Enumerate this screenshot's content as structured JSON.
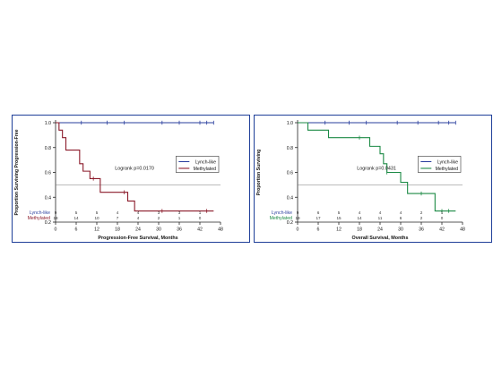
{
  "chart_data": [
    {
      "type": "line",
      "step": true,
      "ylabel": "Proportion Surviving Progression-Free",
      "xlabel": "Progression-Free Survival, Months",
      "xlim": [
        0,
        48
      ],
      "ylim": [
        0.2,
        1.0
      ],
      "xticks": [
        0,
        6,
        12,
        18,
        24,
        30,
        36,
        42,
        48
      ],
      "yticks": [
        0.2,
        0.4,
        0.6,
        0.8,
        1.0
      ],
      "ytick_labels": [
        "0.2",
        "0.4",
        "0.6",
        "0.8",
        "1.0"
      ],
      "reference_line": 0.5,
      "annotation": "Logrank p=0.0170",
      "legend_position": "right",
      "series": [
        {
          "name": "Lynch-like",
          "color": "#2a3f9e",
          "x": [
            0,
            46
          ],
          "y": [
            1.0,
            1.0
          ],
          "censor_x": [
            7.5,
            15,
            20,
            31,
            36,
            42,
            44,
            46
          ]
        },
        {
          "name": "Methylated",
          "color": "#8b1a2a",
          "x": [
            0,
            1,
            2,
            3,
            6,
            7,
            8,
            10,
            11,
            13,
            15,
            21,
            23,
            46
          ],
          "y": [
            1.0,
            0.94,
            0.88,
            0.78,
            0.78,
            0.67,
            0.61,
            0.55,
            0.55,
            0.44,
            0.44,
            0.37,
            0.29,
            0.29
          ],
          "censor_x": [
            11,
            20,
            31,
            44
          ]
        }
      ],
      "risk_table": {
        "rows": [
          {
            "label": "Lynch-like",
            "values": [
              "9",
              "5",
              "5",
              "4",
              "4",
              "3",
              "3",
              "1"
            ]
          },
          {
            "label": "Methylated",
            "values": [
              "18",
              "14",
              "10",
              "7",
              "4",
              "2",
              "1",
              "0"
            ]
          }
        ]
      }
    },
    {
      "type": "line",
      "step": true,
      "ylabel": "Proportion Surviving",
      "xlabel": "Overall Survival, Months",
      "xlim": [
        0,
        48
      ],
      "ylim": [
        0.2,
        1.0
      ],
      "xticks": [
        0,
        6,
        12,
        18,
        24,
        30,
        36,
        42,
        48
      ],
      "yticks": [
        0.2,
        0.4,
        0.6,
        0.8,
        1.0
      ],
      "ytick_labels": [
        "0.2",
        "0.4",
        "0.6",
        "0.8",
        "1.0"
      ],
      "reference_line": 0.5,
      "annotation": "Logrank p=0.0431",
      "legend_position": "right",
      "series": [
        {
          "name": "Lynch-like",
          "color": "#2a3f9e",
          "x": [
            0,
            46
          ],
          "y": [
            1.0,
            1.0
          ],
          "censor_x": [
            8,
            15,
            20,
            29,
            35,
            41,
            44,
            46
          ]
        },
        {
          "name": "Methylated",
          "color": "#1c8a45",
          "x": [
            0,
            3,
            9,
            21,
            24,
            25,
            26,
            30,
            32,
            40,
            46
          ],
          "y": [
            1.0,
            0.94,
            0.88,
            0.81,
            0.75,
            0.67,
            0.6,
            0.52,
            0.43,
            0.29,
            0.29
          ],
          "censor_x": [
            18,
            26,
            36,
            42,
            44
          ]
        }
      ],
      "risk_table": {
        "rows": [
          {
            "label": "Lynch-like",
            "values": [
              "9",
              "6",
              "5",
              "4",
              "4",
              "4",
              "2",
              "1"
            ]
          },
          {
            "label": "Methylated",
            "values": [
              "19",
              "17",
              "15",
              "14",
              "11",
              "6",
              "2",
              "0"
            ]
          }
        ]
      }
    }
  ]
}
